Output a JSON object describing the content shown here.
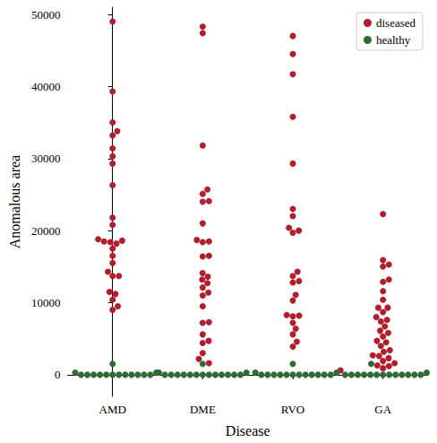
{
  "chart_data": {
    "type": "swarm",
    "x_label": "Disease",
    "y_label": "Anomalous area",
    "categories": [
      "AMD",
      "DME",
      "RVO",
      "GA"
    ],
    "series": [
      {
        "name": "diseased",
        "color": "#b11f2e",
        "marker": "circle",
        "values": [
          [
            49000,
            39300,
            35000,
            33800,
            33200,
            31400,
            30300,
            29300,
            26300,
            21800,
            20800,
            18800,
            18600,
            18500,
            18400,
            18200,
            17500,
            16500,
            15500,
            14300,
            13700,
            13700,
            11500,
            11200,
            10400,
            9500,
            9000
          ],
          [
            48300,
            47400,
            31800,
            25700,
            25100,
            24100,
            24000,
            21000,
            18700,
            18500,
            18400,
            16500,
            16400,
            14100,
            13600,
            13200,
            12700,
            12100,
            11400,
            11000,
            9500,
            7300,
            7200,
            5600,
            4700,
            4400,
            3000,
            2200,
            1600
          ],
          [
            47000,
            44500,
            41700,
            35800,
            29300,
            23000,
            22000,
            20400,
            20000,
            19700,
            14300,
            13700,
            13000,
            12800,
            11100,
            10300,
            8300,
            8200,
            8100,
            7200,
            6400,
            5600,
            4600,
            3900
          ],
          [
            22300,
            15900,
            15300,
            15000,
            13200,
            12900,
            11600,
            10400,
            9300,
            9300,
            8700,
            8000,
            7600,
            7400,
            6700,
            6100,
            5800,
            5300,
            4700,
            4500,
            4000,
            3400,
            3200,
            2700,
            2600,
            2300,
            1900,
            1600,
            1300,
            1200,
            900,
            600
          ]
        ]
      },
      {
        "name": "healthy",
        "color": "#2e6b35",
        "marker": "circle",
        "values": [
          [
            1500,
            300,
            300,
            0,
            0,
            0,
            0,
            0,
            0,
            0,
            0,
            0,
            0,
            0,
            0
          ],
          [
            1500,
            300,
            300,
            0,
            0,
            0,
            0,
            0,
            0,
            0,
            0,
            0,
            0,
            0,
            0,
            0
          ],
          [
            1500,
            300,
            300,
            0,
            0,
            0,
            0,
            0,
            0,
            0,
            0,
            0,
            0,
            0,
            0
          ],
          [
            1500,
            300,
            0,
            0,
            0,
            0,
            0,
            0,
            0,
            0,
            0,
            0,
            0,
            0,
            0
          ]
        ]
      }
    ],
    "ylim": [
      -3000,
      51000
    ],
    "yticks": [
      0,
      10000,
      20000,
      30000,
      40000,
      50000
    ],
    "legend": "upper right",
    "grid": false
  }
}
